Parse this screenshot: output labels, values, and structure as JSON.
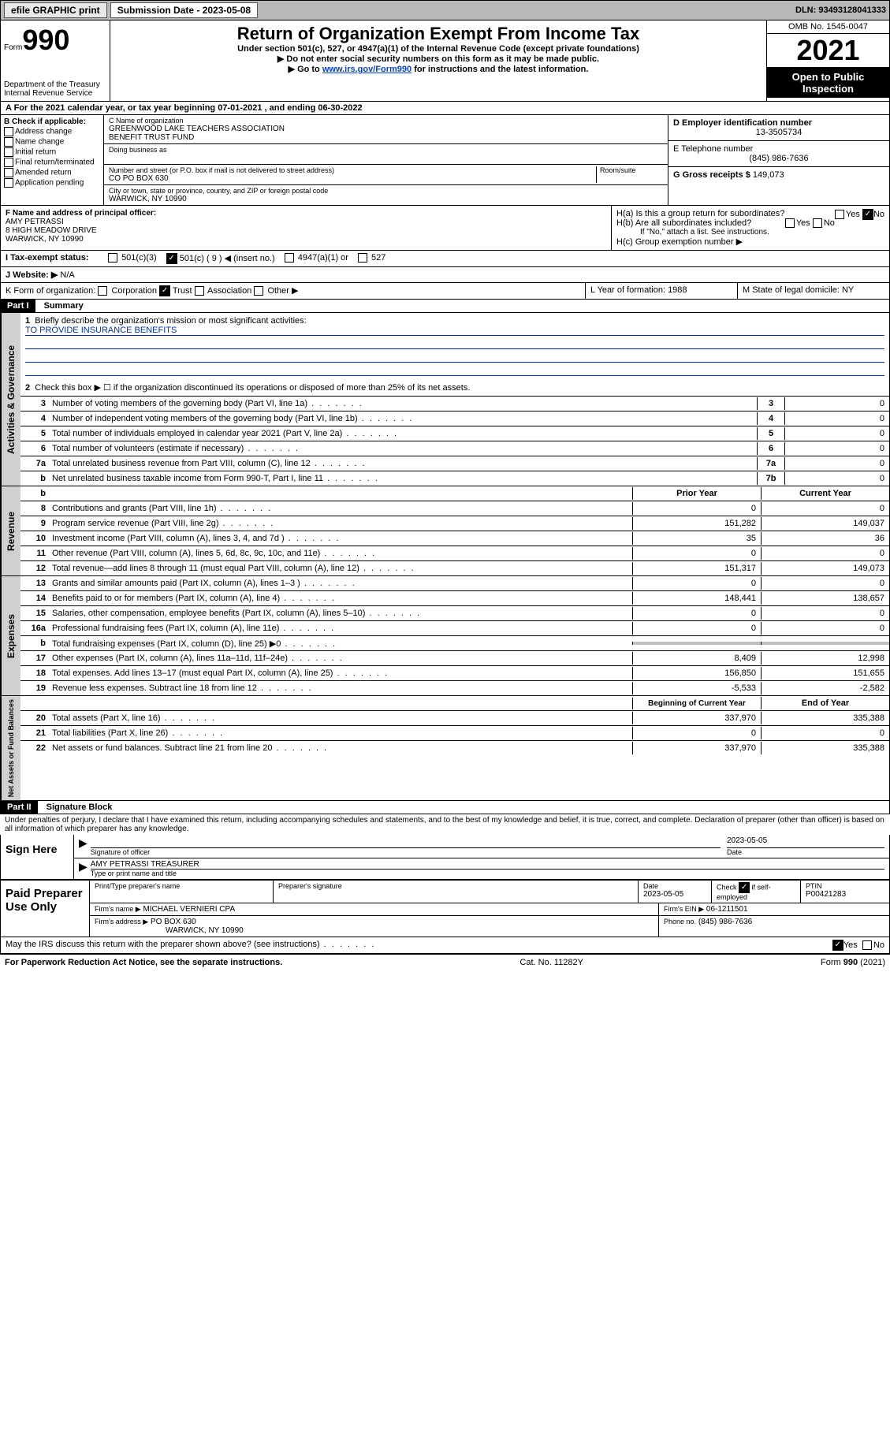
{
  "topbar": {
    "efile_btn": "efile GRAPHIC print",
    "submission_label": "Submission Date - 2023-05-08",
    "dln": "DLN: 93493128041333"
  },
  "header": {
    "form_word": "Form",
    "form_num": "990",
    "dept": "Department of the Treasury",
    "irs": "Internal Revenue Service",
    "title": "Return of Organization Exempt From Income Tax",
    "sub": "Under section 501(c), 527, or 4947(a)(1) of the Internal Revenue Code (except private foundations)",
    "note1": "▶ Do not enter social security numbers on this form as it may be made public.",
    "note2_pre": "▶ Go to ",
    "note2_link": "www.irs.gov/Form990",
    "note2_post": " for instructions and the latest information.",
    "omb": "OMB No. 1545-0047",
    "year": "2021",
    "inspection": "Open to Public Inspection"
  },
  "line_a": "A For the 2021 calendar year, or tax year beginning 07-01-2021   , and ending 06-30-2022",
  "col_b": {
    "heading": "B Check if applicable:",
    "items": [
      "Address change",
      "Name change",
      "Initial return",
      "Final return/terminated",
      "Amended return",
      "Application pending"
    ]
  },
  "col_c": {
    "name_label": "C Name of organization",
    "name1": "GREENWOOD LAKE TEACHERS ASSOCIATION",
    "name2": "BENEFIT TRUST FUND",
    "dba": "Doing business as",
    "addr_label": "Number and street (or P.O. box if mail is not delivered to street address)",
    "room_label": "Room/suite",
    "addr": "CO PO BOX 630",
    "city_label": "City or town, state or province, country, and ZIP or foreign postal code",
    "city": "WARWICK, NY  10990"
  },
  "col_d": {
    "ein_label": "D Employer identification number",
    "ein": "13-3505734",
    "phone_label": "E Telephone number",
    "phone": "(845) 986-7636",
    "gross_label": "G Gross receipts $",
    "gross": "149,073"
  },
  "row_f": {
    "label": "F Name and address of principal officer:",
    "name": "AMY PETRASSI",
    "addr1": "8 HIGH MEADOW DRIVE",
    "addr2": "WARWICK, NY  10990"
  },
  "row_h": {
    "ha": "H(a)  Is this a group return for subordinates?",
    "hb": "H(b)  Are all subordinates included?",
    "hb_note": "If \"No,\" attach a list. See instructions.",
    "hc": "H(c)  Group exemption number ▶",
    "yes": "Yes",
    "no": "No"
  },
  "row_i": {
    "label": "I   Tax-exempt status:",
    "opt1": "501(c)(3)",
    "opt2": "501(c) ( 9 ) ◀ (insert no.)",
    "opt3": "4947(a)(1) or",
    "opt4": "527"
  },
  "row_j": {
    "label": "J   Website: ▶",
    "val": "N/A"
  },
  "row_k": {
    "label": "K Form of organization:",
    "corp": "Corporation",
    "trust": "Trust",
    "assoc": "Association",
    "other": "Other ▶",
    "l_label": "L Year of formation:",
    "l_val": "1988",
    "m_label": "M State of legal domicile:",
    "m_val": "NY"
  },
  "part1": {
    "header": "Part I",
    "title": "Summary",
    "q1": "Briefly describe the organization's mission or most significant activities:",
    "mission": "TO PROVIDE INSURANCE BENEFITS",
    "q2": "Check this box ▶ ☐  if the organization discontinued its operations or disposed of more than 25% of its net assets.",
    "rows_gov": [
      {
        "n": "3",
        "label": "Number of voting members of the governing body (Part VI, line 1a)",
        "box": "3",
        "val": "0"
      },
      {
        "n": "4",
        "label": "Number of independent voting members of the governing body (Part VI, line 1b)",
        "box": "4",
        "val": "0"
      },
      {
        "n": "5",
        "label": "Total number of individuals employed in calendar year 2021 (Part V, line 2a)",
        "box": "5",
        "val": "0"
      },
      {
        "n": "6",
        "label": "Total number of volunteers (estimate if necessary)",
        "box": "6",
        "val": "0"
      },
      {
        "n": "7a",
        "label": "Total unrelated business revenue from Part VIII, column (C), line 12",
        "box": "7a",
        "val": "0"
      },
      {
        "n": "b",
        "label": "Net unrelated business taxable income from Form 990-T, Part I, line 11",
        "box": "7b",
        "val": "0"
      }
    ],
    "col_headers": {
      "prior": "Prior Year",
      "current": "Current Year"
    },
    "rows_rev": [
      {
        "n": "8",
        "label": "Contributions and grants (Part VIII, line 1h)",
        "prior": "0",
        "current": "0"
      },
      {
        "n": "9",
        "label": "Program service revenue (Part VIII, line 2g)",
        "prior": "151,282",
        "current": "149,037"
      },
      {
        "n": "10",
        "label": "Investment income (Part VIII, column (A), lines 3, 4, and 7d )",
        "prior": "35",
        "current": "36"
      },
      {
        "n": "11",
        "label": "Other revenue (Part VIII, column (A), lines 5, 6d, 8c, 9c, 10c, and 11e)",
        "prior": "0",
        "current": "0"
      },
      {
        "n": "12",
        "label": "Total revenue—add lines 8 through 11 (must equal Part VIII, column (A), line 12)",
        "prior": "151,317",
        "current": "149,073"
      }
    ],
    "rows_exp": [
      {
        "n": "13",
        "label": "Grants and similar amounts paid (Part IX, column (A), lines 1–3 )",
        "prior": "0",
        "current": "0"
      },
      {
        "n": "14",
        "label": "Benefits paid to or for members (Part IX, column (A), line 4)",
        "prior": "148,441",
        "current": "138,657"
      },
      {
        "n": "15",
        "label": "Salaries, other compensation, employee benefits (Part IX, column (A), lines 5–10)",
        "prior": "0",
        "current": "0"
      },
      {
        "n": "16a",
        "label": "Professional fundraising fees (Part IX, column (A), line 11e)",
        "prior": "0",
        "current": "0"
      },
      {
        "n": "b",
        "label": "Total fundraising expenses (Part IX, column (D), line 25) ▶0",
        "prior": "",
        "current": "",
        "gray": true
      },
      {
        "n": "17",
        "label": "Other expenses (Part IX, column (A), lines 11a–11d, 11f–24e)",
        "prior": "8,409",
        "current": "12,998"
      },
      {
        "n": "18",
        "label": "Total expenses. Add lines 13–17 (must equal Part IX, column (A), line 25)",
        "prior": "156,850",
        "current": "151,655"
      },
      {
        "n": "19",
        "label": "Revenue less expenses. Subtract line 18 from line 12",
        "prior": "-5,533",
        "current": "-2,582"
      }
    ],
    "col_headers2": {
      "begin": "Beginning of Current Year",
      "end": "End of Year"
    },
    "rows_net": [
      {
        "n": "20",
        "label": "Total assets (Part X, line 16)",
        "prior": "337,970",
        "current": "335,388"
      },
      {
        "n": "21",
        "label": "Total liabilities (Part X, line 26)",
        "prior": "0",
        "current": "0"
      },
      {
        "n": "22",
        "label": "Net assets or fund balances. Subtract line 21 from line 20",
        "prior": "337,970",
        "current": "335,388"
      }
    ],
    "vert_labels": {
      "gov": "Activities & Governance",
      "rev": "Revenue",
      "exp": "Expenses",
      "net": "Net Assets or Fund Balances"
    }
  },
  "part2": {
    "header": "Part II",
    "title": "Signature Block",
    "penalty": "Under penalties of perjury, I declare that I have examined this return, including accompanying schedules and statements, and to the best of my knowledge and belief, it is true, correct, and complete. Declaration of preparer (other than officer) is based on all information of which preparer has any knowledge.",
    "sign_here": "Sign Here",
    "sig_officer": "Signature of officer",
    "sig_date": "2023-05-05",
    "date_label": "Date",
    "officer_name": "AMY PETRASSI TREASURER",
    "officer_type": "Type or print name and title",
    "paid": "Paid Preparer Use Only",
    "prep_name_label": "Print/Type preparer's name",
    "prep_sig_label": "Preparer's signature",
    "prep_date_label": "Date",
    "prep_date": "2023-05-05",
    "check_label": "Check ☑ if self-employed",
    "ptin_label": "PTIN",
    "ptin": "P00421283",
    "firm_name_label": "Firm's name    ▶",
    "firm_name": "MICHAEL VERNIERI CPA",
    "firm_ein_label": "Firm's EIN ▶",
    "firm_ein": "06-1211501",
    "firm_addr_label": "Firm's address ▶",
    "firm_addr1": "PO BOX 630",
    "firm_addr2": "WARWICK, NY  10990",
    "firm_phone_label": "Phone no.",
    "firm_phone": "(845) 986-7636",
    "may_irs": "May the IRS discuss this return with the preparer shown above? (see instructions)",
    "yes": "Yes",
    "no": "No"
  },
  "footer": {
    "left": "For Paperwork Reduction Act Notice, see the separate instructions.",
    "mid": "Cat. No. 11282Y",
    "right_pre": "Form ",
    "right_bold": "990",
    "right_post": " (2021)"
  }
}
